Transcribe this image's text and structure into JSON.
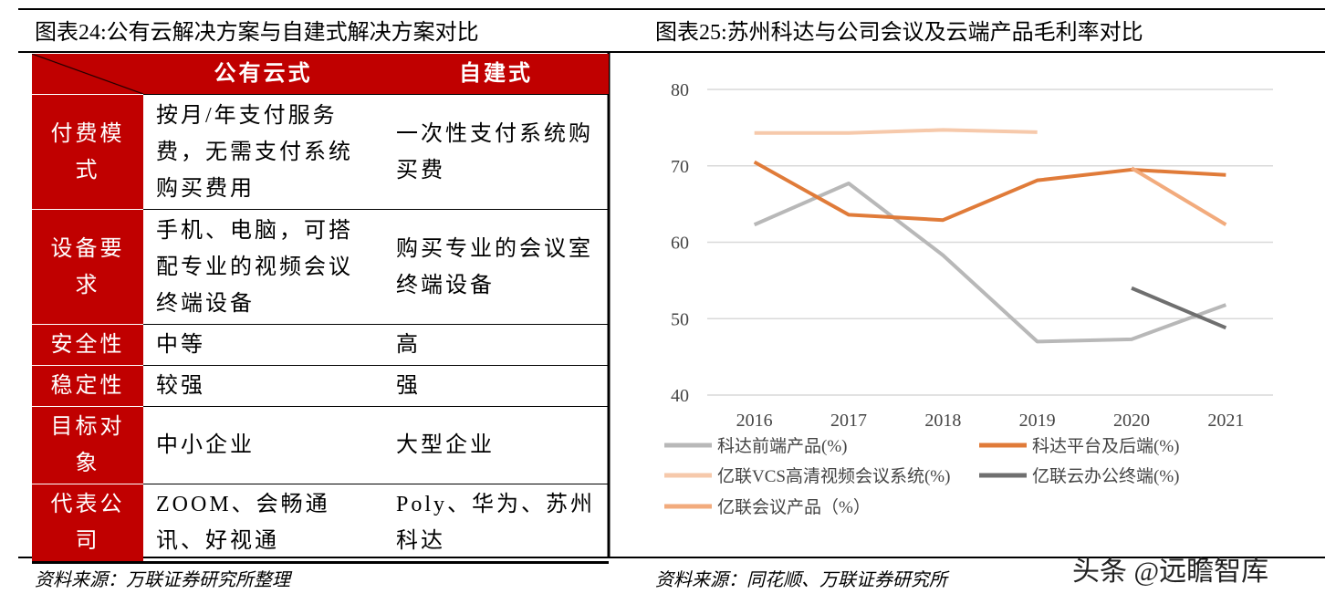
{
  "left_title": "图表24:公有云解决方案与自建式解决方案对比",
  "table": {
    "header": [
      "公有云式",
      "自建式"
    ],
    "rows": [
      [
        "付费模式",
        "按月/年支付服务费，无需支付系统购买费用",
        "一次性支付系统购买费"
      ],
      [
        "设备要求",
        "手机、电脑，可搭配专业的视频会议终端设备",
        "购买专业的会议室终端设备"
      ],
      [
        "安全性",
        "中等",
        "高"
      ],
      [
        "稳定性",
        "较强",
        "强"
      ],
      [
        "目标对象",
        "中小企业",
        "大型企业"
      ],
      [
        "代表公司",
        "ZOOM、会畅通讯、好视通",
        "Poly、华为、苏州科达"
      ]
    ]
  },
  "left_source": "资料来源：万联证券研究所整理",
  "right_source": "资料来源：同花顺、万联证券研究所",
  "watermark": "头条 @远瞻智库",
  "chart_data": {
    "type": "line",
    "title": "图表25:苏州科达与公司会议及云端产品毛利率对比",
    "categories": [
      "2016",
      "2017",
      "2018",
      "2019",
      "2020",
      "2021"
    ],
    "series": [
      {
        "name": "科达前端产品(%)",
        "color": "#b8b8b8",
        "values": [
          62.3,
          67.7,
          58.3,
          47.0,
          47.3,
          51.8
        ]
      },
      {
        "name": "科达平台及后端(%)",
        "color": "#e07b39",
        "values": [
          70.5,
          63.6,
          62.9,
          68.1,
          69.5,
          68.8
        ]
      },
      {
        "name": "亿联VCS高清视频会议系统(%)",
        "color": "#f6c9ab",
        "values": [
          74.3,
          74.3,
          74.7,
          74.4,
          null,
          null
        ]
      },
      {
        "name": "亿联云办公终端(%)",
        "color": "#6f6f6f",
        "values": [
          null,
          null,
          null,
          null,
          54.0,
          48.8
        ]
      },
      {
        "name": "亿联会议产品（%）",
        "color": "#f2ab7d",
        "values": [
          null,
          null,
          null,
          null,
          69.7,
          62.3
        ]
      }
    ],
    "ylim": [
      40,
      80
    ],
    "yticks": [
      40,
      50,
      60,
      70,
      80
    ],
    "grid": true
  }
}
